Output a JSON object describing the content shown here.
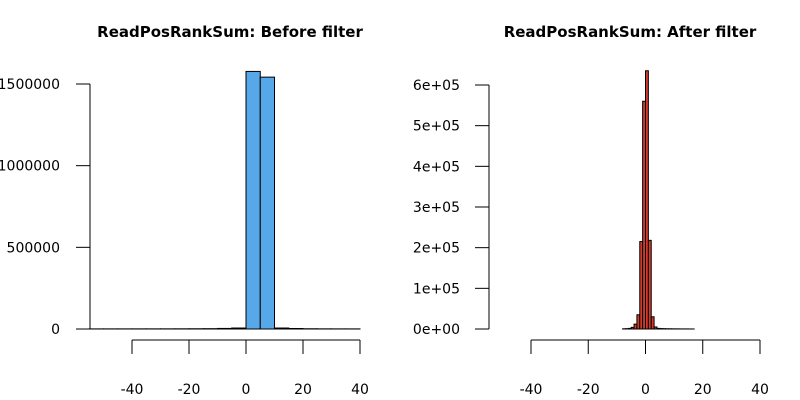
{
  "chart_data": [
    {
      "type": "bar",
      "title": "ReadPosRankSum: Before filter",
      "xlabel": "",
      "ylabel": "",
      "bar_color": "#56a8e8",
      "bin_edges": [
        -55,
        -50,
        -45,
        -40,
        -35,
        -30,
        -25,
        -20,
        -15,
        -10,
        -5,
        0,
        5,
        10,
        15,
        20,
        25,
        30,
        35,
        40
      ],
      "values": [
        700,
        800,
        800,
        900,
        900,
        1000,
        1200,
        1500,
        2000,
        3500,
        6000,
        1577000,
        1542000,
        6000,
        3000,
        1500,
        1000,
        800,
        700
      ],
      "xlim": [
        -55,
        40
      ],
      "ylim": [
        0,
        1600000
      ],
      "x_ticks": [
        -40,
        -20,
        0,
        20,
        40
      ],
      "x_tick_labels": [
        "-40",
        "-20",
        "0",
        "20",
        "40"
      ],
      "y_ticks": [
        0,
        500000,
        1000000,
        1500000
      ],
      "y_tick_labels": [
        "0",
        "500000",
        "1000000",
        "1500000"
      ],
      "grid": false
    },
    {
      "type": "bar",
      "title": "ReadPosRankSum: After filter",
      "xlabel": "",
      "ylabel": "",
      "bar_color": "#d43a2a",
      "bin_edges": [
        -8,
        -7,
        -6,
        -5,
        -4,
        -3,
        -2,
        -1,
        0,
        1,
        2,
        3,
        4,
        5,
        6,
        7,
        8,
        9,
        10,
        11,
        12,
        13,
        14,
        15,
        16,
        17
      ],
      "values": [
        500,
        800,
        1500,
        4000,
        12000,
        35000,
        215000,
        560000,
        635000,
        218000,
        30000,
        5000,
        1500,
        1000,
        800,
        600,
        500,
        400,
        300,
        300,
        200,
        200,
        200,
        100,
        100
      ],
      "xlim": [
        -40,
        40
      ],
      "ylim": [
        0,
        600000
      ],
      "x_ticks": [
        -40,
        -20,
        0,
        20,
        40
      ],
      "x_tick_labels": [
        "-40",
        "-20",
        "0",
        "20",
        "40"
      ],
      "y_ticks": [
        0,
        100000,
        200000,
        300000,
        400000,
        500000,
        600000
      ],
      "y_tick_labels": [
        "0e+00",
        "1e+05",
        "2e+05",
        "3e+05",
        "4e+05",
        "5e+05",
        "6e+05"
      ],
      "grid": false
    }
  ]
}
